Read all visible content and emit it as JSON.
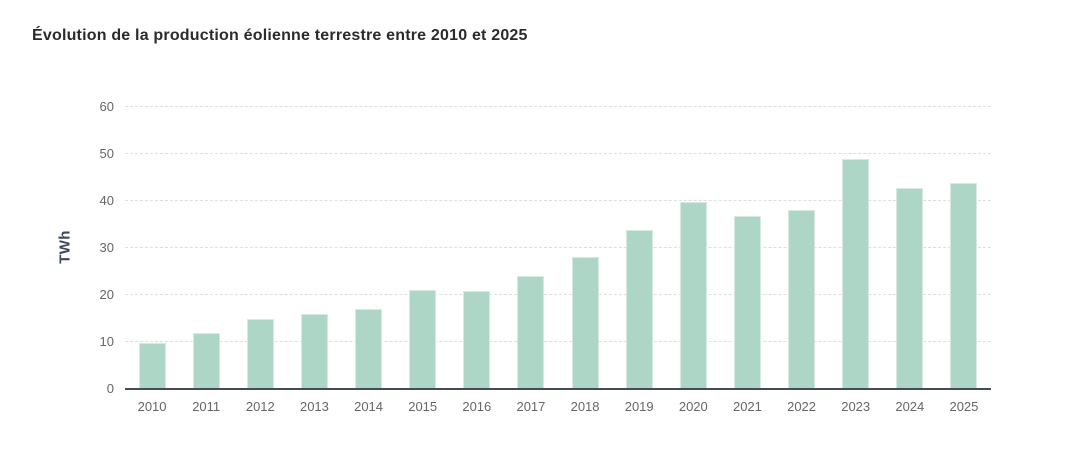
{
  "header": {
    "title": "Évolution de la production éolienne terrestre entre 2010 et 2025"
  },
  "chart_data": {
    "type": "bar",
    "title": "Évolution de la production éolienne terrestre entre 2010 et 2025",
    "xlabel": "",
    "ylabel": "TWh",
    "categories": [
      "2010",
      "2011",
      "2012",
      "2013",
      "2014",
      "2015",
      "2016",
      "2017",
      "2018",
      "2019",
      "2020",
      "2021",
      "2022",
      "2023",
      "2024",
      "2025"
    ],
    "values": [
      9.7,
      12,
      14.9,
      15.9,
      17,
      21.1,
      20.9,
      24,
      28,
      33.8,
      39.7,
      36.8,
      38.1,
      48.9,
      42.8,
      43.8
    ],
    "ylim": [
      0,
      60
    ],
    "ytick_step": 10,
    "yticks": [
      0,
      10,
      20,
      30,
      40,
      50,
      60
    ],
    "grid": "horizontal-dashed",
    "legend": "none",
    "colors": {
      "bar": "#aed6c6",
      "bar_border": "#d6eae1",
      "grid": "#dedede",
      "axis_line": "#454c55",
      "tick_labels": "#666666",
      "y_axis_title": "#3e4a5c",
      "title": "#2b2b2b",
      "background": "#ffffff"
    }
  }
}
